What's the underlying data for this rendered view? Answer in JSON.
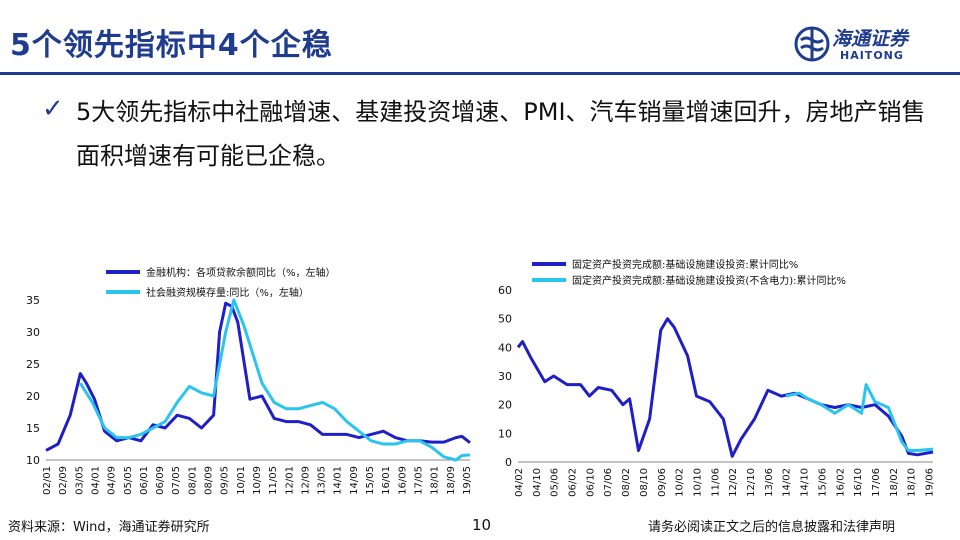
{
  "slide": {
    "title": "5个领先指标中4个企稳",
    "bullet": "5大领先指标中社融增速、基建投资增速、PMI、汽车销量增速回升，房地产销售面积增速有可能已企稳。",
    "logo_cn": "海通证券",
    "logo_en": "HAITONG",
    "footer_source": "资料来源：Wind，海通证券研究所",
    "page_number": "10",
    "disclaimer": "请务必阅读正文之后的信息披露和法律声明",
    "colors": {
      "title": "#1f3c8f",
      "series_dark": "#1f1fc8",
      "series_light": "#29c5ee"
    }
  },
  "chart_data": [
    {
      "type": "line",
      "ylim": [
        10,
        35
      ],
      "yticks": [
        10,
        15,
        20,
        25,
        30,
        35
      ],
      "xticks": [
        "02/01",
        "02/09",
        "03/05",
        "04/01",
        "04/09",
        "05/05",
        "06/01",
        "06/09",
        "07/05",
        "08/01",
        "08/09",
        "09/05",
        "10/01",
        "10/09",
        "11/05",
        "12/01",
        "12/09",
        "13/05",
        "14/01",
        "14/09",
        "15/05",
        "16/01",
        "16/09",
        "17/05",
        "18/01",
        "18/09",
        "19/05"
      ],
      "x_start": "2002-01",
      "x_end": "2019-07",
      "series": [
        {
          "name": "金融机构：各项贷款余额同比（%，左轴）",
          "color": "#1f1fc8",
          "points": [
            [
              "2002-01",
              11.5
            ],
            [
              "2002-07",
              12.5
            ],
            [
              "2003-01",
              17
            ],
            [
              "2003-06",
              23.5
            ],
            [
              "2003-09",
              22
            ],
            [
              "2004-01",
              19.5
            ],
            [
              "2004-06",
              14.5
            ],
            [
              "2004-12",
              13
            ],
            [
              "2005-06",
              13.5
            ],
            [
              "2005-12",
              13
            ],
            [
              "2006-06",
              15.5
            ],
            [
              "2006-12",
              15
            ],
            [
              "2007-06",
              17
            ],
            [
              "2007-12",
              16.5
            ],
            [
              "2008-06",
              15
            ],
            [
              "2008-12",
              17
            ],
            [
              "2009-03",
              30
            ],
            [
              "2009-06",
              34.5
            ],
            [
              "2009-09",
              34
            ],
            [
              "2009-12",
              31.5
            ],
            [
              "2010-06",
              19.5
            ],
            [
              "2010-12",
              20
            ],
            [
              "2011-06",
              16.5
            ],
            [
              "2011-12",
              16
            ],
            [
              "2012-06",
              16
            ],
            [
              "2012-12",
              15.5
            ],
            [
              "2013-06",
              14
            ],
            [
              "2013-12",
              14
            ],
            [
              "2014-06",
              14
            ],
            [
              "2014-12",
              13.5
            ],
            [
              "2015-06",
              14
            ],
            [
              "2015-12",
              14.5
            ],
            [
              "2016-06",
              13.5
            ],
            [
              "2016-12",
              13
            ],
            [
              "2017-06",
              13
            ],
            [
              "2017-12",
              12.8
            ],
            [
              "2018-06",
              12.8
            ],
            [
              "2018-12",
              13.5
            ],
            [
              "2019-03",
              13.7
            ],
            [
              "2019-07",
              12.7
            ]
          ]
        },
        {
          "name": "社会融资规模存量:同比（%，左轴）",
          "color": "#29c5ee",
          "points": [
            [
              "2003-06",
              22
            ],
            [
              "2003-12",
              19
            ],
            [
              "2004-06",
              15
            ],
            [
              "2004-12",
              13.5
            ],
            [
              "2005-06",
              13.5
            ],
            [
              "2005-12",
              14
            ],
            [
              "2006-06",
              15
            ],
            [
              "2006-12",
              16
            ],
            [
              "2007-06",
              19
            ],
            [
              "2007-12",
              21.5
            ],
            [
              "2008-06",
              20.5
            ],
            [
              "2008-12",
              20
            ],
            [
              "2009-06",
              30
            ],
            [
              "2009-10",
              35
            ],
            [
              "2010-03",
              31
            ],
            [
              "2010-12",
              22
            ],
            [
              "2011-06",
              19
            ],
            [
              "2011-12",
              18
            ],
            [
              "2012-06",
              18
            ],
            [
              "2012-12",
              18.5
            ],
            [
              "2013-06",
              19
            ],
            [
              "2013-12",
              18
            ],
            [
              "2014-06",
              16
            ],
            [
              "2014-12",
              14.5
            ],
            [
              "2015-06",
              13
            ],
            [
              "2015-12",
              12.5
            ],
            [
              "2016-06",
              12.5
            ],
            [
              "2016-12",
              13
            ],
            [
              "2017-06",
              13
            ],
            [
              "2017-12",
              12
            ],
            [
              "2018-06",
              10.5
            ],
            [
              "2018-12",
              10
            ],
            [
              "2019-03",
              10.7
            ],
            [
              "2019-07",
              10.8
            ]
          ]
        }
      ]
    },
    {
      "type": "line",
      "ylim": [
        0,
        60
      ],
      "yticks": [
        0,
        10,
        20,
        30,
        40,
        50,
        60
      ],
      "xticks": [
        "04/02",
        "04/10",
        "05/06",
        "06/02",
        "06/10",
        "07/06",
        "08/02",
        "08/10",
        "09/06",
        "10/02",
        "10/10",
        "11/06",
        "12/02",
        "12/10",
        "13/06",
        "14/02",
        "14/10",
        "15/06",
        "16/02",
        "16/10",
        "17/06",
        "18/02",
        "18/10",
        "19/06"
      ],
      "x_start": "2004-02",
      "x_end": "2019-08",
      "series": [
        {
          "name": "固定资产投资完成额:基础设施建设投资:累计同比%",
          "color": "#1f1fc8",
          "points": [
            [
              "2004-02",
              40
            ],
            [
              "2004-04",
              42
            ],
            [
              "2004-08",
              36
            ],
            [
              "2005-02",
              28
            ],
            [
              "2005-06",
              30
            ],
            [
              "2005-12",
              27
            ],
            [
              "2006-06",
              27
            ],
            [
              "2006-10",
              23
            ],
            [
              "2007-02",
              26
            ],
            [
              "2007-08",
              25
            ],
            [
              "2008-01",
              20
            ],
            [
              "2008-04",
              22
            ],
            [
              "2008-08",
              4
            ],
            [
              "2009-01",
              15
            ],
            [
              "2009-06",
              46
            ],
            [
              "2009-09",
              50
            ],
            [
              "2009-12",
              47
            ],
            [
              "2010-06",
              37
            ],
            [
              "2010-10",
              23
            ],
            [
              "2011-04",
              21
            ],
            [
              "2011-10",
              15
            ],
            [
              "2012-02",
              2
            ],
            [
              "2012-06",
              8
            ],
            [
              "2012-12",
              15
            ],
            [
              "2013-06",
              25
            ],
            [
              "2013-12",
              23
            ],
            [
              "2014-06",
              24
            ],
            [
              "2014-12",
              22
            ],
            [
              "2015-06",
              20
            ],
            [
              "2015-12",
              19
            ],
            [
              "2016-06",
              20
            ],
            [
              "2016-12",
              19
            ],
            [
              "2017-06",
              20
            ],
            [
              "2017-12",
              16
            ],
            [
              "2018-06",
              9
            ],
            [
              "2018-09",
              3
            ],
            [
              "2019-01",
              2.5
            ],
            [
              "2019-08",
              3.5
            ]
          ]
        },
        {
          "name": "固定资产投资完成额:基础设施建设投资(不含电力):累计同比%",
          "color": "#29c5ee",
          "points": [
            [
              "2014-02",
              23
            ],
            [
              "2014-08",
              24
            ],
            [
              "2014-12",
              22
            ],
            [
              "2015-06",
              20
            ],
            [
              "2015-12",
              17
            ],
            [
              "2016-06",
              20
            ],
            [
              "2016-10",
              18
            ],
            [
              "2016-12",
              17
            ],
            [
              "2017-02",
              27
            ],
            [
              "2017-06",
              21
            ],
            [
              "2017-12",
              19
            ],
            [
              "2018-06",
              7
            ],
            [
              "2018-09",
              4
            ],
            [
              "2019-01",
              4
            ],
            [
              "2019-08",
              4.5
            ]
          ]
        }
      ]
    }
  ]
}
